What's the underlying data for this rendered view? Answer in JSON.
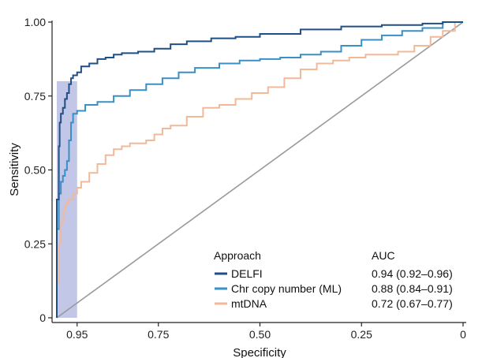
{
  "chart_data": {
    "type": "line",
    "title": "",
    "xlabel": "Specificity",
    "ylabel": "Sensitivity",
    "xlim": [
      1.0,
      0.0
    ],
    "ylim": [
      0.0,
      1.0
    ],
    "x_ticks": [
      0.95,
      0.75,
      0.5,
      0.25,
      0
    ],
    "x_tick_labels": [
      "0.95",
      "0.75",
      "0.50",
      "0.25",
      "0"
    ],
    "y_ticks": [
      0,
      0.25,
      0.5,
      0.75,
      1.0
    ],
    "y_tick_labels": [
      "0",
      "0.25",
      "0.50",
      "0.75",
      "1.00"
    ],
    "grid": false,
    "highlight_region": {
      "x_from": 1.0,
      "x_to": 0.95,
      "y_from": 0.0,
      "y_to": 0.8,
      "color": "#b7bce3"
    },
    "diagonal": {
      "from": [
        1.0,
        0.0
      ],
      "to": [
        0.0,
        1.0
      ],
      "color": "#9a9a9a"
    },
    "legend": {
      "title": "Approach",
      "auc_title": "AUC",
      "position": "bottom-right"
    },
    "series": [
      {
        "name": "DELFI",
        "auc": "0.94 (0.92–0.96)",
        "color": "#1e4f86",
        "points": [
          [
            1.0,
            0.0
          ],
          [
            0.995,
            0.4
          ],
          [
            0.993,
            0.58
          ],
          [
            0.99,
            0.66
          ],
          [
            0.985,
            0.69
          ],
          [
            0.98,
            0.71
          ],
          [
            0.975,
            0.74
          ],
          [
            0.97,
            0.76
          ],
          [
            0.965,
            0.79
          ],
          [
            0.96,
            0.81
          ],
          [
            0.95,
            0.82
          ],
          [
            0.94,
            0.83
          ],
          [
            0.92,
            0.85
          ],
          [
            0.9,
            0.86
          ],
          [
            0.88,
            0.875
          ],
          [
            0.86,
            0.88
          ],
          [
            0.84,
            0.89
          ],
          [
            0.8,
            0.895
          ],
          [
            0.76,
            0.9
          ],
          [
            0.72,
            0.91
          ],
          [
            0.68,
            0.925
          ],
          [
            0.62,
            0.935
          ],
          [
            0.56,
            0.945
          ],
          [
            0.5,
            0.95
          ],
          [
            0.4,
            0.96
          ],
          [
            0.3,
            0.975
          ],
          [
            0.2,
            0.985
          ],
          [
            0.1,
            0.99
          ],
          [
            0.05,
            0.995
          ],
          [
            0.0,
            1.0
          ]
        ]
      },
      {
        "name": "Chr copy number (ML)",
        "auc": "0.88 (0.84–0.91)",
        "color": "#3a8fc4",
        "points": [
          [
            1.0,
            0.0
          ],
          [
            0.995,
            0.3
          ],
          [
            0.99,
            0.42
          ],
          [
            0.985,
            0.46
          ],
          [
            0.98,
            0.48
          ],
          [
            0.975,
            0.5
          ],
          [
            0.97,
            0.53
          ],
          [
            0.965,
            0.6
          ],
          [
            0.96,
            0.66
          ],
          [
            0.95,
            0.69
          ],
          [
            0.93,
            0.7
          ],
          [
            0.9,
            0.72
          ],
          [
            0.86,
            0.73
          ],
          [
            0.82,
            0.75
          ],
          [
            0.78,
            0.77
          ],
          [
            0.74,
            0.79
          ],
          [
            0.7,
            0.81
          ],
          [
            0.66,
            0.83
          ],
          [
            0.6,
            0.845
          ],
          [
            0.55,
            0.86
          ],
          [
            0.5,
            0.87
          ],
          [
            0.45,
            0.875
          ],
          [
            0.4,
            0.88
          ],
          [
            0.35,
            0.89
          ],
          [
            0.3,
            0.9
          ],
          [
            0.25,
            0.92
          ],
          [
            0.2,
            0.94
          ],
          [
            0.15,
            0.955
          ],
          [
            0.1,
            0.97
          ],
          [
            0.05,
            0.98
          ],
          [
            0.0,
            1.0
          ]
        ]
      },
      {
        "name": "mtDNA",
        "auc": "0.72 (0.67–0.77)",
        "color": "#f2b89a",
        "points": [
          [
            1.0,
            0.0
          ],
          [
            0.995,
            0.12
          ],
          [
            0.99,
            0.25
          ],
          [
            0.985,
            0.32
          ],
          [
            0.98,
            0.36
          ],
          [
            0.975,
            0.38
          ],
          [
            0.97,
            0.39
          ],
          [
            0.96,
            0.4
          ],
          [
            0.95,
            0.42
          ],
          [
            0.94,
            0.44
          ],
          [
            0.92,
            0.46
          ],
          [
            0.9,
            0.49
          ],
          [
            0.88,
            0.52
          ],
          [
            0.86,
            0.55
          ],
          [
            0.84,
            0.57
          ],
          [
            0.82,
            0.58
          ],
          [
            0.78,
            0.59
          ],
          [
            0.76,
            0.6
          ],
          [
            0.74,
            0.62
          ],
          [
            0.72,
            0.64
          ],
          [
            0.68,
            0.65
          ],
          [
            0.64,
            0.68
          ],
          [
            0.6,
            0.71
          ],
          [
            0.56,
            0.72
          ],
          [
            0.52,
            0.74
          ],
          [
            0.48,
            0.76
          ],
          [
            0.44,
            0.78
          ],
          [
            0.4,
            0.81
          ],
          [
            0.36,
            0.84
          ],
          [
            0.32,
            0.86
          ],
          [
            0.28,
            0.87
          ],
          [
            0.24,
            0.88
          ],
          [
            0.2,
            0.89
          ],
          [
            0.16,
            0.89
          ],
          [
            0.12,
            0.9
          ],
          [
            0.08,
            0.92
          ],
          [
            0.05,
            0.95
          ],
          [
            0.02,
            0.97
          ],
          [
            0.0,
            1.0
          ]
        ]
      }
    ]
  }
}
